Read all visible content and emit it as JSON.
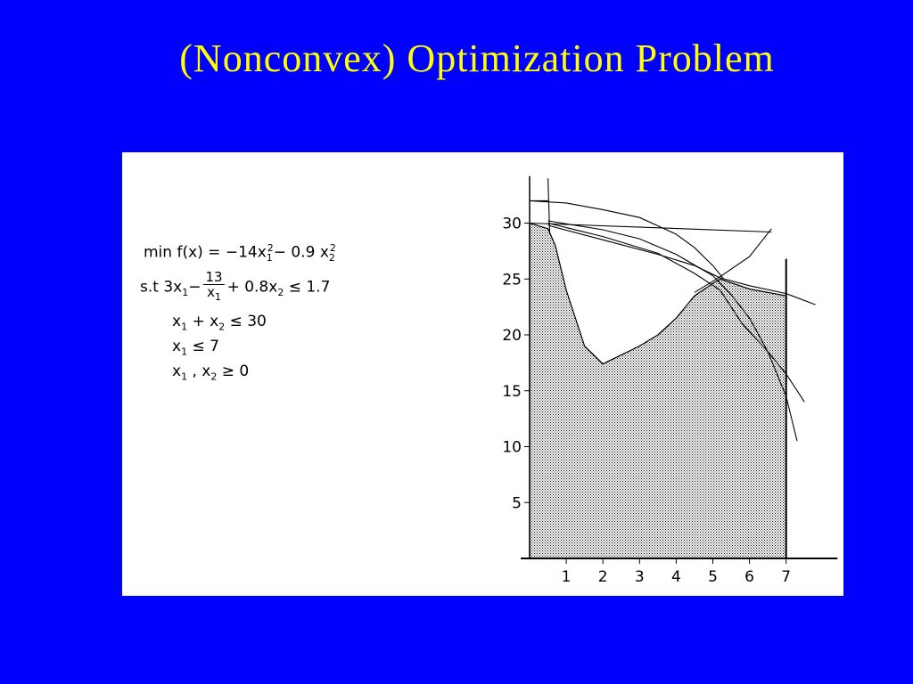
{
  "slide": {
    "title": "(Nonconvex) Optimization Problem",
    "background_color": "#0000ff",
    "title_color": "#ffff00"
  },
  "problem": {
    "objective": {
      "prefix": "min f(x) = −14x",
      "sub1": "1",
      "sup1": "2",
      "mid": "− 0.9 x",
      "sub2": "2",
      "sup2": "2"
    },
    "constraint1": {
      "prefix": "s.t  3x",
      "sub1": "1",
      "minus": "−",
      "frac_num": "13",
      "frac_den_var": "x",
      "frac_den_sub": "1",
      "mid": "+ 0.8x",
      "sub2": "2",
      "rhs": " ≤ 1.7"
    },
    "constraint2": {
      "var1": "x",
      "sub1": "1",
      "mid": "  + x",
      "sub2": "2",
      "rhs": "  ≤ 30"
    },
    "constraint3": {
      "var1": "x",
      "sub1": "1",
      "rhs": "  ≤ 7"
    },
    "constraint4": {
      "var1": "x",
      "sub1": "1",
      "mid": " , x",
      "sub2": "2",
      "rhs": "  ≥ 0"
    }
  },
  "chart_data": {
    "type": "area",
    "xlim": [
      0,
      8
    ],
    "ylim": [
      0,
      33
    ],
    "xticks": [
      "1",
      "2",
      "3",
      "4",
      "5",
      "6",
      "7"
    ],
    "yticks": [
      "5",
      "10",
      "15",
      "20",
      "25",
      "30"
    ],
    "feasible_region_shaded": true,
    "feasible_boundary": [
      [
        0,
        0
      ],
      [
        0,
        30
      ],
      [
        0.5,
        29.5
      ],
      [
        0.7,
        28
      ],
      [
        1,
        24
      ],
      [
        1.5,
        19
      ],
      [
        2,
        17.4
      ],
      [
        2.5,
        18.2
      ],
      [
        3,
        19
      ],
      [
        3.5,
        20
      ],
      [
        4,
        21.5
      ],
      [
        4.5,
        23.5
      ],
      [
        5,
        24.6
      ],
      [
        5.2,
        25
      ],
      [
        6,
        24.1
      ],
      [
        7,
        23.5
      ],
      [
        7,
        0
      ]
    ],
    "curves": [
      {
        "name": "",
        "points": [
          [
            0,
            32
          ],
          [
            1,
            31.8
          ],
          [
            2,
            31.2
          ],
          [
            3,
            30.5
          ],
          [
            4,
            29
          ],
          [
            4.5,
            27.8
          ],
          [
            5,
            26.2
          ],
          [
            5.3,
            25
          ]
        ]
      },
      {
        "name": "",
        "points": [
          [
            0.5,
            29.8
          ],
          [
            2,
            28.5
          ],
          [
            3.5,
            27.2
          ],
          [
            4.5,
            26.2
          ],
          [
            5.2,
            25.1
          ],
          [
            6,
            24.4
          ],
          [
            7,
            23.7
          ],
          [
            7.8,
            22.7
          ]
        ]
      },
      {
        "name": "",
        "points": [
          [
            0.5,
            30.2
          ],
          [
            2,
            29.4
          ],
          [
            3,
            28.6
          ],
          [
            4,
            27.2
          ],
          [
            5,
            25.3
          ],
          [
            5.5,
            23.6
          ],
          [
            6,
            21.5
          ],
          [
            6.5,
            18.5
          ],
          [
            7,
            14.5
          ],
          [
            7.3,
            10.5
          ]
        ]
      },
      {
        "name": "",
        "points": [
          [
            0.5,
            30
          ],
          [
            2,
            28.8
          ],
          [
            3.5,
            27.3
          ],
          [
            4.5,
            25.5
          ],
          [
            5.2,
            24
          ],
          [
            5.8,
            21
          ],
          [
            6.5,
            18.5
          ],
          [
            7,
            16.5
          ],
          [
            7.5,
            14
          ]
        ]
      },
      {
        "name": "",
        "points": [
          [
            0,
            30
          ],
          [
            6.6,
            29.2
          ]
        ]
      },
      {
        "name": "",
        "points": [
          [
            4.5,
            23.8
          ],
          [
            5.2,
            25.2
          ],
          [
            6,
            27
          ],
          [
            6.6,
            29.5
          ]
        ]
      },
      {
        "name": "",
        "points": [
          [
            0.5,
            34
          ],
          [
            0.55,
            29
          ]
        ]
      },
      {
        "name": "",
        "points": [
          [
            0,
            32
          ],
          [
            0.5,
            32
          ]
        ]
      }
    ],
    "vertical_line_x": 7
  }
}
